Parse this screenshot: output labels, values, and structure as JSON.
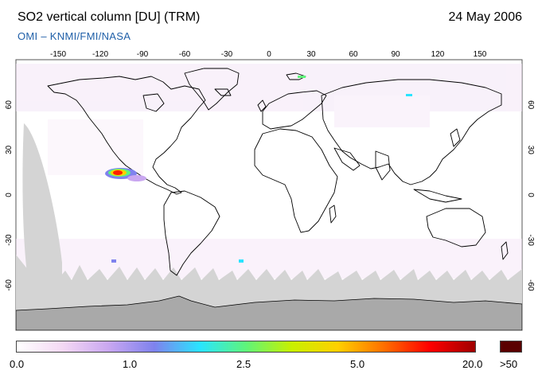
{
  "header": {
    "title": "SO2 vertical column [DU] (TRM)",
    "date": "24 May 2006",
    "subtitle": "OMI  –  KNMI/FMI/NASA"
  },
  "map": {
    "projection": "equirectangular",
    "lon_range": [
      -180,
      180
    ],
    "lat_range": [
      -90,
      90
    ],
    "lon_ticks": [
      -150,
      -120,
      -90,
      -60,
      -30,
      0,
      30,
      60,
      90,
      120,
      150
    ],
    "lat_ticks": [
      60,
      30,
      0,
      -30,
      -60
    ],
    "no_data_color": "#d4d4d4",
    "antarctic_color": "#a9a9a9",
    "hotspot": {
      "description": "SO2 plume near Central America",
      "peak_color": "#ff2000"
    }
  },
  "colorbar": {
    "labels": [
      "0.0",
      "1.0",
      "2.5",
      "5.0",
      "20.0",
      ">50"
    ],
    "colors": [
      "#ffffff",
      "#f4d8f4",
      "#c9a7f0",
      "#7f82ee",
      "#29e4ff",
      "#5ef57a",
      "#c8f000",
      "#ffd000",
      "#ff7000",
      "#ff0000",
      "#a00000"
    ],
    "overflow_color": "#5a0000"
  }
}
